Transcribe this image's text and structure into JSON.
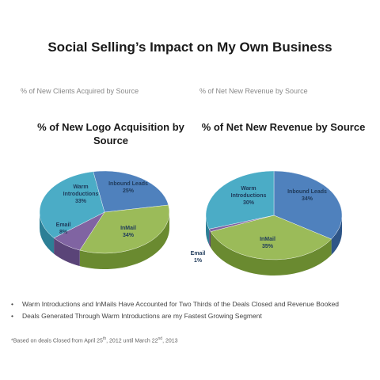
{
  "page": {
    "title": "Social Selling’s Impact on My Own Business",
    "left_caption": "% of New Clients Acquired by Source",
    "right_caption": "% of Net New Revenue by Source",
    "bullets": [
      "Warm Introductions and InMails Have Accounted for Two Thirds of the Deals Closed and Revenue Booked",
      "Deals Generated Through Warm Introductions are my Fastest Growing Segment"
    ],
    "bullet_symbol": "•",
    "footnote": {
      "prefix": "*Based on deals Closed from April 25",
      "sup1": "th",
      "middle": ", 2012 until March 22",
      "sup2": "nd",
      "suffix": ", 2013"
    }
  },
  "chart_data": [
    {
      "type": "pie",
      "title_line1": "% of New Logo Acquisition by",
      "title_line2": "Source",
      "slices": [
        {
          "name": "Inbound Leads",
          "value": 25,
          "label": "25%",
          "color": "#4f81bd",
          "side": "#2e5587"
        },
        {
          "name": "InMail",
          "value": 34,
          "label": "34%",
          "color": "#9bbb59",
          "side": "#6a8a30"
        },
        {
          "name": "Email",
          "value": 8,
          "label": "8%",
          "color": "#8064a2",
          "side": "#5a4478"
        },
        {
          "name": "Warm Introductions",
          "value": 33,
          "label": "33%",
          "color": "#4bacc6",
          "side": "#2c7f96"
        }
      ]
    },
    {
      "type": "pie",
      "title_line1": "% of Net New Revenue by Source",
      "title_line2": "",
      "slices": [
        {
          "name": "Inbound Leads",
          "value": 34,
          "label": "34%",
          "color": "#4f81bd",
          "side": "#2e5587"
        },
        {
          "name": "InMail",
          "value": 35,
          "label": "35%",
          "color": "#9bbb59",
          "side": "#6a8a30"
        },
        {
          "name": "Email",
          "value": 1,
          "label": "1%",
          "color": "#8064a2",
          "side": "#5a4478"
        },
        {
          "name": "Warm Introductions",
          "value": 30,
          "label": "30%",
          "color": "#4bacc6",
          "side": "#2c7f96"
        }
      ]
    }
  ]
}
